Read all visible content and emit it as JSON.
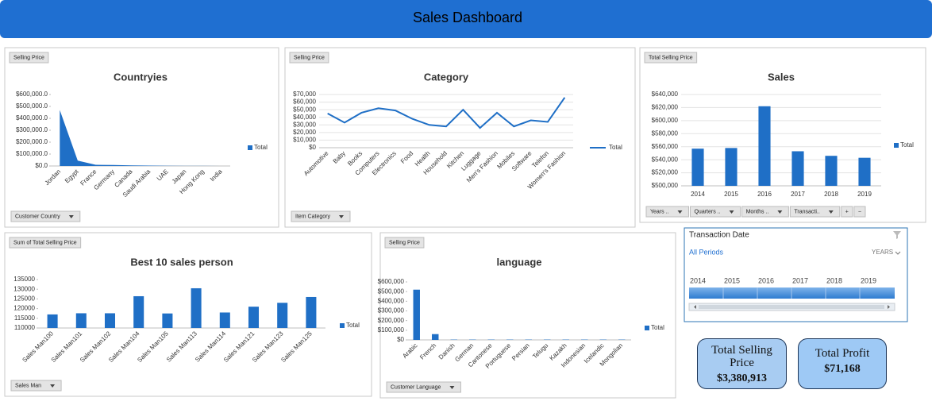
{
  "header": {
    "title": "Sales Dashboard"
  },
  "chart_data": [
    {
      "type": "area",
      "title": "Countryies",
      "field_button": "Selling Price",
      "filter_button": "Customer Country",
      "categories": [
        "Jordan",
        "Egypt",
        "France",
        "Germany",
        "Canada",
        "Saudi Arabia",
        "UAE",
        "Japan",
        "Hong Kong",
        "India"
      ],
      "series": [
        {
          "name": "Total",
          "color": "#1f6fc6",
          "values": [
            470000,
            45000,
            10000,
            8000,
            5000,
            3000,
            2000,
            1000,
            500,
            300
          ]
        }
      ],
      "ylim": [
        0,
        600000
      ],
      "yticks": [
        {
          "value": 0,
          "label": "$0.0"
        },
        {
          "value": 100000,
          "label": "$100,000.0"
        },
        {
          "value": 200000,
          "label": "$200,000.0"
        },
        {
          "value": 300000,
          "label": "$300,000.0"
        },
        {
          "value": 400000,
          "label": "$400,000.0"
        },
        {
          "value": 500000,
          "label": "$500,000.0"
        },
        {
          "value": 600000,
          "label": "$600,000.0"
        }
      ],
      "grid": false,
      "legend": "right"
    },
    {
      "type": "line",
      "title": "Category",
      "field_button": "Selling Price",
      "filter_button": "Item Category",
      "categories": [
        "Automotive",
        "Baby",
        "Books",
        "Computers",
        "Electronics",
        "Food",
        "Health",
        "Household",
        "Kitchen",
        "Luggage",
        "Men's Fashion",
        "Mobiles",
        "Software",
        "Telefon",
        "Women's Fashion"
      ],
      "series": [
        {
          "name": "Total",
          "color": "#1f6fc6",
          "values": [
            45000,
            33000,
            46000,
            52000,
            49000,
            38000,
            30000,
            28000,
            50000,
            26000,
            46000,
            28000,
            36000,
            34000,
            66000
          ]
        }
      ],
      "ylim": [
        0,
        70000
      ],
      "yticks": [
        {
          "value": 0,
          "label": "$0"
        },
        {
          "value": 10000,
          "label": "$10,000"
        },
        {
          "value": 20000,
          "label": "$20,000"
        },
        {
          "value": 30000,
          "label": "$30,000"
        },
        {
          "value": 40000,
          "label": "$40,000"
        },
        {
          "value": 50000,
          "label": "$50,000"
        },
        {
          "value": 60000,
          "label": "$60,000"
        },
        {
          "value": 70000,
          "label": "$70,000"
        }
      ],
      "grid": true,
      "legend": "right"
    },
    {
      "type": "bar",
      "title": "Sales",
      "field_button": "Total Selling Price",
      "pivot_buttons": [
        "Years ..",
        "Quarters ..",
        "Months ..",
        "Transacti..",
        "+",
        "−"
      ],
      "categories": [
        "2014",
        "2015",
        "2016",
        "2017",
        "2018",
        "2019"
      ],
      "series": [
        {
          "name": "Total",
          "color": "#1f6fc6",
          "values": [
            557000,
            558000,
            622000,
            553000,
            546000,
            543000
          ]
        }
      ],
      "ylim": [
        500000,
        640000
      ],
      "yticks": [
        {
          "value": 500000,
          "label": "$500,000"
        },
        {
          "value": 520000,
          "label": "$520,000"
        },
        {
          "value": 540000,
          "label": "$540,000"
        },
        {
          "value": 560000,
          "label": "$560,000"
        },
        {
          "value": 580000,
          "label": "$580,000"
        },
        {
          "value": 600000,
          "label": "$600,000"
        },
        {
          "value": 620000,
          "label": "$620,000"
        },
        {
          "value": 640000,
          "label": "$640,000"
        }
      ],
      "grid": true,
      "legend": "right"
    },
    {
      "type": "bar",
      "title": "Best 10  sales person",
      "field_button": "Sum of Total Selling Price",
      "filter_button": "Sales Man",
      "categories": [
        "Sales Man100",
        "Sales Man101",
        "Sales Man102",
        "Sales Man104",
        "Sales Man105",
        "Sales Man113",
        "Sales Man114",
        "Sales Man121",
        "Sales Man123",
        "Sales Man125"
      ],
      "series": [
        {
          "name": "Total",
          "color": "#1f6fc6",
          "values": [
            117000,
            117600,
            117600,
            126400,
            117500,
            130500,
            118000,
            121000,
            123000,
            126000
          ]
        }
      ],
      "ylim": [
        110000,
        135000
      ],
      "yticks": [
        110000,
        115000,
        120000,
        125000,
        130000,
        135000
      ],
      "grid": false,
      "legend": "right"
    },
    {
      "type": "bar",
      "title": "language",
      "field_button": "Selling Price",
      "filter_button": "Customer Language",
      "categories": [
        "Arabic",
        "French",
        "Danish",
        "German",
        "Cantonese",
        "Portuguese",
        "Persian",
        "Telugu",
        "Kazakh",
        "Indonesian",
        "Icelandic",
        "Mongolian"
      ],
      "series": [
        {
          "name": "Total",
          "color": "#1f6fc6",
          "values": [
            520000,
            60000,
            3000,
            3000,
            3000,
            3000,
            3000,
            3000,
            3000,
            3000,
            3000,
            3000
          ]
        }
      ],
      "ylim": [
        0,
        600000
      ],
      "yticks": [
        {
          "value": 0,
          "label": "$0"
        },
        {
          "value": 100000,
          "label": "$100,000"
        },
        {
          "value": 200000,
          "label": "$200,000"
        },
        {
          "value": 300000,
          "label": "$300,000"
        },
        {
          "value": 400000,
          "label": "$400,000"
        },
        {
          "value": 500000,
          "label": "$500,000"
        },
        {
          "value": 600000,
          "label": "$600,000"
        }
      ],
      "grid": false,
      "legend": "right"
    }
  ],
  "slicer": {
    "title": "Transaction Date",
    "period": "All Periods",
    "level": "YEARS",
    "years": [
      2014,
      2015,
      2016,
      2017,
      2018,
      2019
    ]
  },
  "kpis": [
    {
      "label": "Total Selling Price",
      "value": "$3,380,913"
    },
    {
      "label": "Total Profit",
      "value": "$71,168"
    }
  ]
}
